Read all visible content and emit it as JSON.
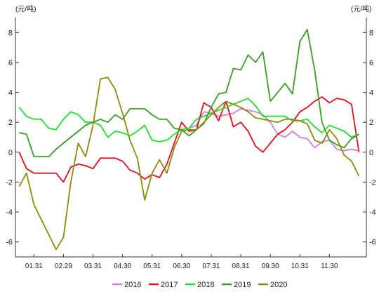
{
  "chart_data": {
    "type": "line",
    "left_unit_label": "(元/吨)",
    "right_unit_label": "(元/吨)",
    "ylim": [
      -7,
      9
    ],
    "yticks": [
      -6,
      -4,
      -2,
      0,
      2,
      4,
      6,
      8
    ],
    "x_tick_labels": [
      "01.31",
      "02.29",
      "03.31",
      "04.30",
      "05.31",
      "06.30",
      "07.31",
      "08.31",
      "09.30",
      "10.31",
      "11.30"
    ],
    "x_tick_positions": [
      2,
      6,
      10,
      14,
      18,
      22,
      26,
      30,
      34,
      38,
      42
    ],
    "x_range": [
      -0.5,
      47
    ],
    "grid": false,
    "legend_position": "bottom",
    "series": [
      {
        "name": "2016",
        "color": "#d77bd8",
        "x": [
          23,
          24,
          25,
          26,
          27,
          28,
          29,
          30,
          31,
          32,
          33,
          34,
          35,
          36,
          37,
          38,
          39,
          40,
          41,
          42,
          43,
          44,
          45,
          46
        ],
        "values": [
          1.6,
          1.8,
          2.7,
          2.6,
          2.4,
          2.5,
          2.6,
          2.9,
          2.8,
          2.7,
          2.5,
          2.0,
          1.2,
          1.0,
          1.4,
          1.0,
          0.9,
          0.3,
          0.7,
          0.8,
          0.2,
          0.1,
          0.2,
          0.1
        ]
      },
      {
        "name": "2017",
        "color": "#e0121b",
        "x": [
          0,
          1,
          2,
          3,
          4,
          5,
          6,
          7,
          8,
          9,
          10,
          11,
          12,
          13,
          14,
          15,
          16,
          17,
          18,
          19,
          20,
          21,
          22,
          23,
          24,
          25,
          26,
          27,
          28,
          29,
          30,
          31,
          32,
          33,
          34,
          35,
          36,
          37,
          38,
          39,
          40,
          41,
          42,
          43,
          44,
          45,
          46
        ],
        "values": [
          0,
          -1.1,
          -1.4,
          -1.4,
          -1.4,
          -1.4,
          -2.0,
          -1.0,
          -0.8,
          -0.9,
          -1.1,
          -0.4,
          -0.4,
          -0.4,
          -0.6,
          -1.2,
          -1.4,
          -1.8,
          -1.5,
          -1.7,
          -0.8,
          0.6,
          2.0,
          1.4,
          1.5,
          3.3,
          3.0,
          2.1,
          3.4,
          1.7,
          2.0,
          1.4,
          0.4,
          0.0,
          0.6,
          1.2,
          1.5,
          2.0,
          2.7,
          3.0,
          3.4,
          3.7,
          3.3,
          3.6,
          3.5,
          3.2,
          0
        ]
      },
      {
        "name": "2018",
        "color": "#21e12f",
        "x": [
          0,
          1,
          2,
          3,
          4,
          5,
          6,
          7,
          8,
          9,
          10,
          11,
          12,
          13,
          14,
          15,
          16,
          17,
          18,
          19,
          20,
          21,
          22,
          23,
          24,
          25,
          26,
          27,
          28,
          29,
          30,
          31,
          32,
          33,
          34,
          35,
          36,
          37,
          38,
          39,
          40,
          41,
          42,
          43,
          44,
          45,
          46
        ],
        "values": [
          3.0,
          2.4,
          2.2,
          2.2,
          1.6,
          1.5,
          2.2,
          2.7,
          2.5,
          2.0,
          2.0,
          1.8,
          1.0,
          1.4,
          1.3,
          1.1,
          1.4,
          1.8,
          0.8,
          0.7,
          0.8,
          1.2,
          1.5,
          1.6,
          2.2,
          2.4,
          2.6,
          2.8,
          3.0,
          3.2,
          3.4,
          3.6,
          3.1,
          2.4,
          2.4,
          2.4,
          2.4,
          2.1,
          2.1,
          2.2,
          1.7,
          1.3,
          1.8,
          1.6,
          1.4,
          1.0,
          1.2
        ]
      },
      {
        "name": "2019",
        "color": "#3b9c2a",
        "x": [
          0,
          1,
          2,
          3,
          4,
          5,
          6,
          7,
          8,
          9,
          10,
          11,
          12,
          13,
          14,
          15,
          16,
          17,
          18,
          19,
          20,
          21,
          22,
          23,
          24,
          25,
          26,
          27,
          28,
          29,
          30,
          31,
          32,
          33,
          34,
          35,
          36,
          37,
          38,
          39,
          40,
          41,
          42,
          43,
          44,
          45,
          46
        ],
        "values": [
          1.3,
          1.2,
          -0.3,
          -0.3,
          -0.3,
          0.2,
          0.6,
          1.0,
          1.4,
          1.8,
          2.0,
          2.2,
          2.0,
          2.5,
          2.2,
          2.9,
          2.9,
          2.9,
          2.5,
          2.2,
          2.2,
          1.6,
          1.5,
          1.1,
          1.5,
          1.9,
          3.0,
          3.9,
          4.0,
          5.6,
          5.5,
          6.5,
          6.0,
          6.7,
          3.4,
          4.0,
          4.6,
          3.9,
          7.4,
          8.2,
          5.5,
          2.0,
          0.8,
          0.5,
          0.3,
          0.9,
          1.2
        ]
      },
      {
        "name": "2020",
        "color": "#8e8a0b",
        "x": [
          0,
          1,
          2,
          3,
          4,
          5,
          6,
          7,
          8,
          9,
          10,
          11,
          12,
          13,
          14,
          15,
          16,
          17,
          18,
          19,
          20,
          21,
          22,
          23,
          24,
          25,
          26,
          27,
          28,
          29,
          30,
          31,
          32,
          33,
          34,
          35,
          36,
          37,
          38,
          39,
          40,
          41,
          42,
          43,
          44,
          45,
          46
        ],
        "values": [
          -2.3,
          -1.4,
          -3.5,
          -4.5,
          -5.5,
          -6.5,
          -5.7,
          -2.0,
          0.6,
          -0.3,
          1.8,
          4.9,
          5.0,
          4.2,
          2.6,
          0.8,
          -0.4,
          -3.2,
          -1.4,
          -0.5,
          -1.4,
          0.3,
          1.4,
          1.5,
          1.5,
          2.0,
          2.5,
          3.0,
          3.4,
          3.2,
          3.0,
          2.7,
          2.3,
          2.2,
          2.1,
          2.0,
          2.2,
          2.2,
          2.1,
          1.9,
          0.8,
          0.6,
          1.5,
          0.9,
          -0.2,
          -0.6,
          -1.6
        ]
      }
    ]
  }
}
